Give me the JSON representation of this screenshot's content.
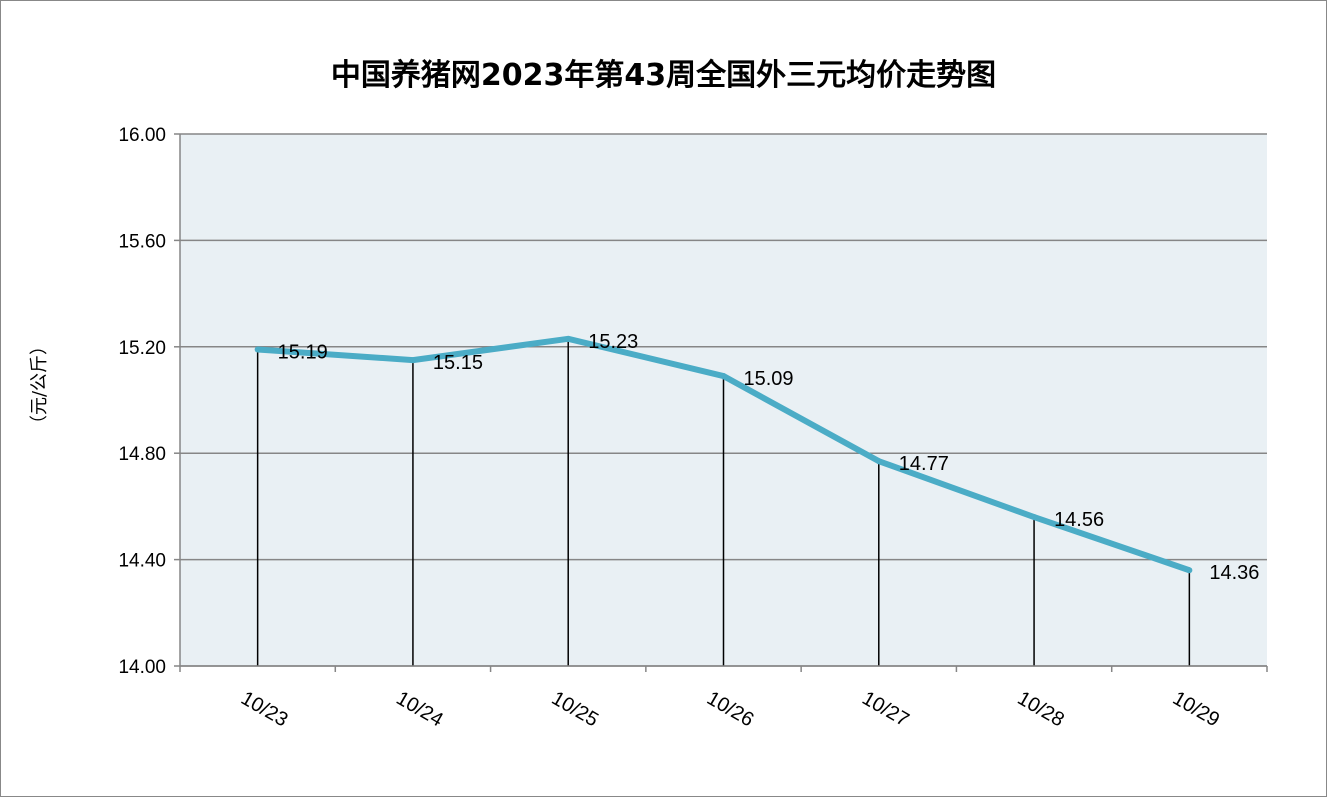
{
  "chart_data": {
    "type": "line",
    "title": "中国养猪网2023年第43周全国外三元均价走势图",
    "xlabel": "",
    "ylabel": "（元/公斤）",
    "categories": [
      "10/23",
      "10/24",
      "10/25",
      "10/26",
      "10/27",
      "10/28",
      "10/29"
    ],
    "values": [
      15.19,
      15.15,
      15.23,
      15.09,
      14.77,
      14.56,
      14.36
    ],
    "labels": [
      "15.19",
      "15.15",
      "15.23",
      "15.09",
      "14.77",
      "14.56",
      "14.36"
    ],
    "ylim": [
      14.0,
      16.0
    ],
    "yticks": [
      "14.00",
      "14.40",
      "14.80",
      "15.20",
      "15.60",
      "16.00"
    ],
    "grid": true,
    "legend": "none",
    "colors": {
      "line": "#4bacc6",
      "plot_bg": "#e9f0f4",
      "grid": "#868686"
    }
  }
}
